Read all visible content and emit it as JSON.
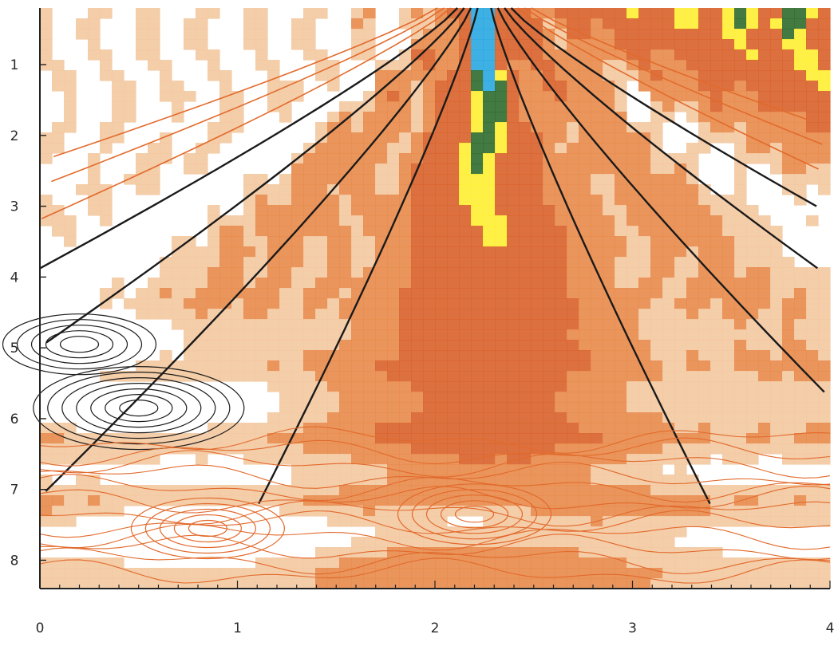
{
  "chart_data": {
    "type": "heatmap",
    "subtype": "filled-contour",
    "title": "",
    "xlabel": "",
    "ylabel": "",
    "xlim": [
      0,
      4
    ],
    "ylim": [
      8.4,
      0.2
    ],
    "y_axis_inverted": true,
    "x_ticks": [
      "0",
      "1",
      "2",
      "3",
      "4"
    ],
    "y_ticks": [
      "1",
      "2",
      "3",
      "4",
      "5",
      "6",
      "7",
      "8"
    ],
    "x_tick_values": [
      0,
      1,
      2,
      3,
      4
    ],
    "y_tick_values": [
      1,
      2,
      3,
      4,
      5,
      6,
      7,
      8
    ],
    "colormap": [
      "#ffffff",
      "#f3c8a0",
      "#e88a4a",
      "#d8622a",
      "#ffee33",
      "#2e6b2e",
      "#29a7e0",
      "#111111"
    ],
    "line_colors": {
      "outer": "#e26a2c",
      "inner": "#1a1a1a"
    },
    "features": [
      {
        "label": "",
        "kind": "cone",
        "apex": [
          2.25,
          0.2
        ],
        "spread": 1.9
      },
      {
        "label": "",
        "kind": "high-band",
        "region": "top-right",
        "colors": [
          "#29a7e0",
          "#2e6b2e",
          "#ffee33"
        ]
      },
      {
        "label": "",
        "kind": "closed-contour",
        "center": [
          0.5,
          5.85
        ]
      },
      {
        "label": "",
        "kind": "closed-contour",
        "center": [
          0.2,
          4.95
        ]
      },
      {
        "label": "",
        "kind": "closed-contour",
        "center": [
          0.85,
          7.55
        ]
      },
      {
        "label": "",
        "kind": "closed-contour",
        "center": [
          2.2,
          7.35
        ]
      }
    ],
    "grid": false,
    "legend": "none"
  }
}
